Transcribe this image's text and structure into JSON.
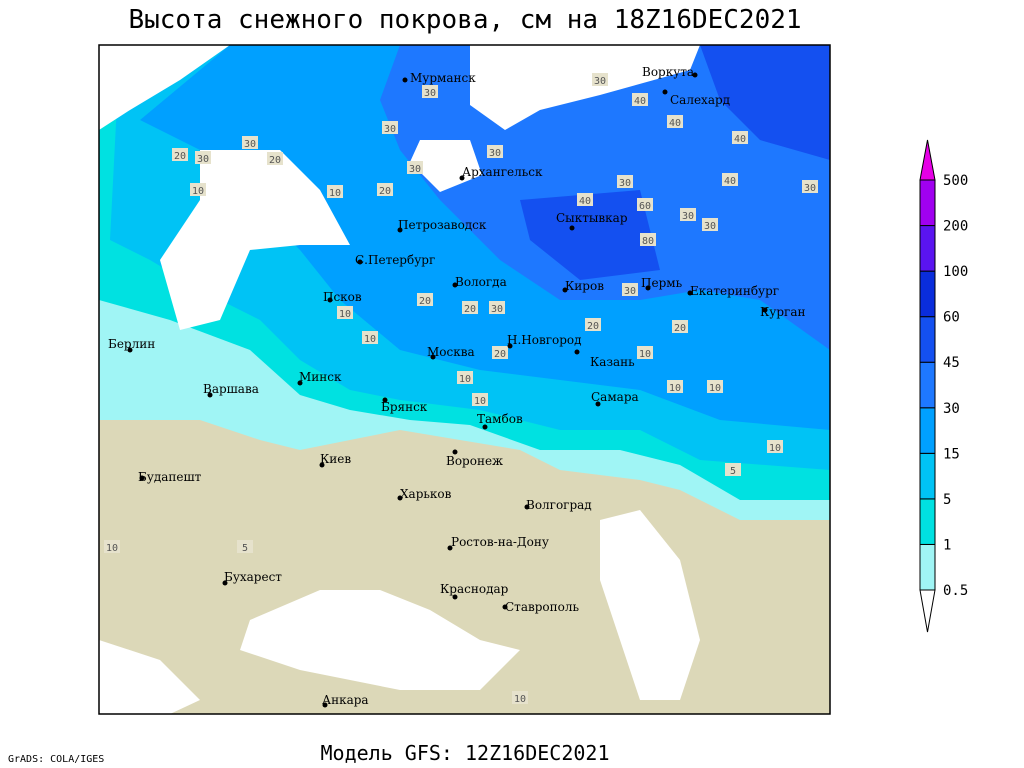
{
  "title": "Высота снежного покрова, см на 18Z16DEC2021",
  "footer": {
    "credit": "GrADS: COLA/IGES",
    "model": "Модель GFS: 12Z16DEC2021"
  },
  "cities": [
    "Мурманск",
    "Воркута",
    "Салехард",
    "Архангельск",
    "Петрозаводск",
    "Сыктывкар",
    "С.Петербург",
    "Вологда",
    "Киров",
    "Пермь",
    "Екатеринбург",
    "Курган",
    "Псков",
    "Н.Новгород",
    "Москва",
    "Казань",
    "Берлин",
    "Варшава",
    "Минск",
    "Самара",
    "Брянск",
    "Тамбов",
    "Киев",
    "Воронеж",
    "Будапешт",
    "Харьков",
    "Волгоград",
    "Ростов-на-Дону",
    "Бухарест",
    "Краснодар",
    "Ставрополь",
    "Анкара"
  ],
  "contour_labels": [
    30,
    40,
    30,
    40,
    40,
    30,
    30,
    40,
    30,
    20,
    30,
    30,
    20,
    10,
    20,
    10,
    30,
    30,
    40,
    60,
    30,
    10,
    10,
    20,
    20,
    30,
    20,
    10,
    10,
    20,
    10,
    10,
    10,
    10,
    5,
    5,
    10,
    10,
    80,
    30,
    20,
    30
  ],
  "colorbar": {
    "levels": [
      0.5,
      1,
      5,
      15,
      30,
      45,
      60,
      100,
      200,
      500
    ],
    "colors": [
      "#ffffff",
      "#a0f5f5",
      "#00e1e1",
      "#00c3f5",
      "#00a0ff",
      "#1e78ff",
      "#1450f0",
      "#0a2ddc",
      "#5a14f0",
      "#a000f0",
      "#e600e6"
    ]
  }
}
